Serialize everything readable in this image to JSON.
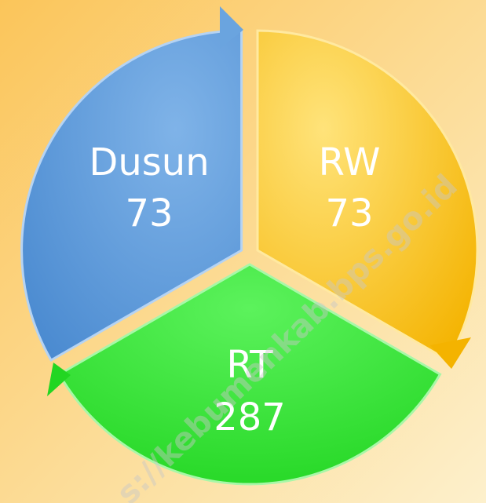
{
  "nodes": [
    {
      "label": "Dusun",
      "value": "73"
    },
    {
      "label": "RW",
      "value": "73"
    },
    {
      "label": "RT",
      "value": "287"
    }
  ],
  "watermark": "s://kebumenkab.bps.go.id"
}
